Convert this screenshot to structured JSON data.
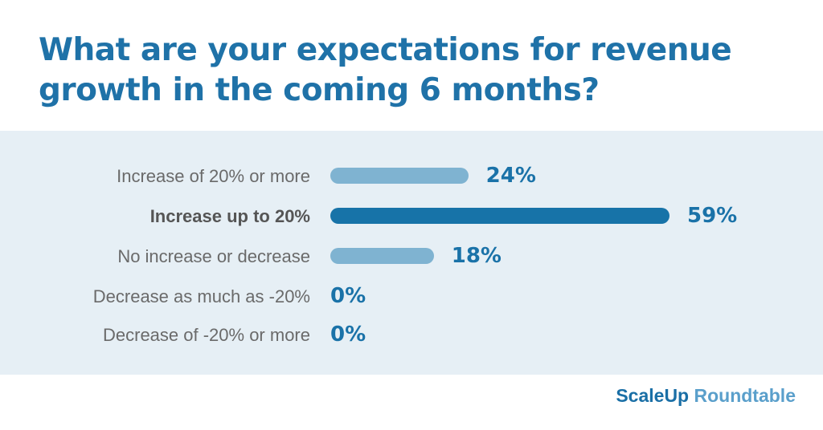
{
  "chart_data": {
    "type": "bar",
    "orientation": "horizontal",
    "title": "What are your expectations for revenue growth in the coming 6 months?",
    "categories": [
      "Increase of 20% or more",
      "Increase up to 20%",
      "No increase or decrease",
      "Decrease as much as -20%",
      "Decrease of -20% or more"
    ],
    "values": [
      24,
      59,
      18,
      0,
      0
    ],
    "value_labels": [
      "24%",
      "59%",
      "18%",
      "0%",
      "0%"
    ],
    "highlighted_index": 1,
    "xlabel": "",
    "ylabel": "",
    "xlim": [
      0,
      59
    ],
    "grid": false
  },
  "colors": {
    "highlight": "#1773a8",
    "normal": "#7fb3d1",
    "title": "#1f72a8"
  },
  "logo": {
    "part1": "ScaleUp",
    "part2": " Roundtable"
  }
}
